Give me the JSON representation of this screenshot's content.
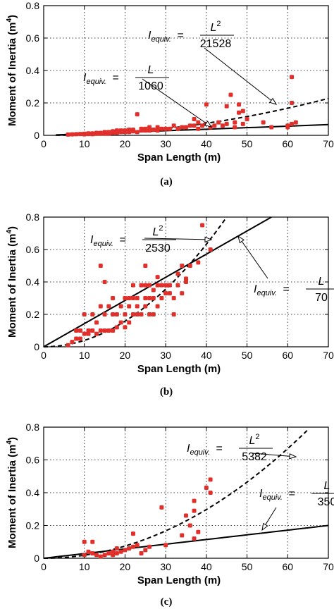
{
  "chart_data": [
    {
      "type": "scatter",
      "panel_label": "(a)",
      "xlabel": "Span Length (m)",
      "ylabel_main": "Moment of Inertia (m",
      "ylabel_sup": "4",
      "ylabel_close": ")",
      "xlim": [
        0,
        70
      ],
      "ylim": [
        0,
        0.8
      ],
      "xticks": [
        "0",
        "10",
        "20",
        "30",
        "40",
        "50",
        "60",
        "70"
      ],
      "yticks": [
        "0",
        "0.2",
        "0.4",
        "0.6",
        "0.8"
      ],
      "grid": true,
      "curves": [
        {
          "style": "dashed",
          "form": "quadratic",
          "divisor": 21528,
          "x": [
            3,
            70
          ]
        },
        {
          "style": "solid",
          "form": "linear",
          "divisor": 1060,
          "x": [
            3,
            70
          ]
        }
      ],
      "equations": [
        {
          "lhs": "I",
          "sub": "equiv.",
          "eq": "=",
          "num": "L",
          "num_sup": "2",
          "den": "21528"
        },
        {
          "lhs": "I",
          "sub": "equiv.",
          "eq": "=",
          "num": "L",
          "num_sup": "",
          "den": "1060"
        }
      ],
      "points": [
        [
          6,
          0.005
        ],
        [
          7,
          0.006
        ],
        [
          8,
          0.007
        ],
        [
          9,
          0.008
        ],
        [
          10,
          0.006
        ],
        [
          10,
          0.01
        ],
        [
          11,
          0.008
        ],
        [
          11,
          0.012
        ],
        [
          12,
          0.007
        ],
        [
          12,
          0.012
        ],
        [
          13,
          0.01
        ],
        [
          13,
          0.015
        ],
        [
          14,
          0.01
        ],
        [
          14,
          0.015
        ],
        [
          15,
          0.01
        ],
        [
          15,
          0.02
        ],
        [
          16,
          0.01
        ],
        [
          16,
          0.02
        ],
        [
          17,
          0.015
        ],
        [
          17,
          0.025
        ],
        [
          18,
          0.015
        ],
        [
          18,
          0.03
        ],
        [
          19,
          0.02
        ],
        [
          19,
          0.03
        ],
        [
          20,
          0.02
        ],
        [
          20,
          0.03
        ],
        [
          21,
          0.02
        ],
        [
          21,
          0.035
        ],
        [
          22,
          0.025
        ],
        [
          22,
          0.035
        ],
        [
          23,
          0.02
        ],
        [
          23,
          0.13
        ],
        [
          24,
          0.03
        ],
        [
          24,
          0.04
        ],
        [
          25,
          0.03
        ],
        [
          25,
          0.04
        ],
        [
          26,
          0.03
        ],
        [
          26,
          0.05
        ],
        [
          27,
          0.035
        ],
        [
          28,
          0.03
        ],
        [
          28,
          0.05
        ],
        [
          29,
          0.04
        ],
        [
          30,
          0.04
        ],
        [
          31,
          0.04
        ],
        [
          32,
          0.06
        ],
        [
          33,
          0.04
        ],
        [
          34,
          0.05
        ],
        [
          35,
          0.05
        ],
        [
          36,
          0.06
        ],
        [
          37,
          0.06
        ],
        [
          37,
          0.1
        ],
        [
          38,
          0.04
        ],
        [
          38,
          0.08
        ],
        [
          39,
          0.06
        ],
        [
          40,
          0.07
        ],
        [
          40,
          0.19
        ],
        [
          41,
          0.05
        ],
        [
          42,
          0.06
        ],
        [
          43,
          0.08
        ],
        [
          44,
          0.06
        ],
        [
          45,
          0.07
        ],
        [
          45,
          0.18
        ],
        [
          46,
          0.25
        ],
        [
          47,
          0.05
        ],
        [
          47,
          0.08
        ],
        [
          48,
          0.14
        ],
        [
          48,
          0.19
        ],
        [
          49,
          0.07
        ],
        [
          49,
          0.15
        ],
        [
          50,
          0.1
        ],
        [
          54,
          0.08
        ],
        [
          56,
          0.05
        ],
        [
          60,
          0.05
        ],
        [
          60,
          0.06
        ],
        [
          61,
          0.07
        ],
        [
          61,
          0.2
        ],
        [
          61,
          0.36
        ],
        [
          62,
          0.08
        ]
      ]
    },
    {
      "type": "scatter",
      "panel_label": "(b)",
      "xlabel": "Span Length (m)",
      "ylabel_main": "Moment of Inertia (m",
      "ylabel_sup": "4",
      "ylabel_close": ")",
      "xlim": [
        0,
        70
      ],
      "ylim": [
        0,
        0.8
      ],
      "xticks": [
        "0",
        "10",
        "20",
        "30",
        "40",
        "50",
        "60",
        "70"
      ],
      "yticks": [
        "0",
        "0.2",
        "0.4",
        "0.6",
        "0.8"
      ],
      "grid": true,
      "curves": [
        {
          "style": "dashed",
          "form": "quadratic",
          "divisor": 2530,
          "x": [
            0,
            45
          ]
        },
        {
          "style": "solid",
          "form": "linear",
          "divisor": 70,
          "x": [
            0,
            56
          ]
        }
      ],
      "equations": [
        {
          "lhs": "I",
          "sub": "equiv.",
          "eq": "=",
          "num": "L",
          "num_sup": "2",
          "den": "2530"
        },
        {
          "lhs": "I",
          "sub": "equiv.",
          "eq": "=",
          "num": "L",
          "num_sup": "",
          "den": "70"
        }
      ],
      "points": [
        [
          6,
          0.01
        ],
        [
          7,
          0.03
        ],
        [
          8,
          0.05
        ],
        [
          8,
          0.1
        ],
        [
          9,
          0.05
        ],
        [
          9,
          0.1
        ],
        [
          10,
          0.08
        ],
        [
          10,
          0.2
        ],
        [
          11,
          0.08
        ],
        [
          11,
          0.1
        ],
        [
          12,
          0.1
        ],
        [
          12,
          0.2
        ],
        [
          13,
          0.08
        ],
        [
          13,
          0.15
        ],
        [
          14,
          0.1
        ],
        [
          14,
          0.25
        ],
        [
          14,
          0.5
        ],
        [
          15,
          0.1
        ],
        [
          15,
          0.2
        ],
        [
          15,
          0.4
        ],
        [
          16,
          0.1
        ],
        [
          16,
          0.25
        ],
        [
          17,
          0.1
        ],
        [
          17,
          0.2
        ],
        [
          17,
          0.3
        ],
        [
          18,
          0.12
        ],
        [
          18,
          0.2
        ],
        [
          19,
          0.15
        ],
        [
          19,
          0.25
        ],
        [
          20,
          0.12
        ],
        [
          20,
          0.2
        ],
        [
          20,
          0.3
        ],
        [
          21,
          0.15
        ],
        [
          21,
          0.25
        ],
        [
          21,
          0.3
        ],
        [
          22,
          0.2
        ],
        [
          22,
          0.3
        ],
        [
          22,
          0.38
        ],
        [
          23,
          0.2
        ],
        [
          23,
          0.25
        ],
        [
          23,
          0.3
        ],
        [
          24,
          0.2
        ],
        [
          24,
          0.38
        ],
        [
          25,
          0.25
        ],
        [
          25,
          0.3
        ],
        [
          25,
          0.38
        ],
        [
          25,
          0.5
        ],
        [
          26,
          0.2
        ],
        [
          26,
          0.3
        ],
        [
          26,
          0.38
        ],
        [
          27,
          0.2
        ],
        [
          27,
          0.3
        ],
        [
          27,
          0.35
        ],
        [
          28,
          0.25
        ],
        [
          28,
          0.38
        ],
        [
          28,
          0.43
        ],
        [
          29,
          0.3
        ],
        [
          29,
          0.38
        ],
        [
          30,
          0.33
        ],
        [
          30,
          0.38
        ],
        [
          31,
          0.33
        ],
        [
          31,
          0.38
        ],
        [
          32,
          0.2
        ],
        [
          32,
          0.3
        ],
        [
          33,
          0.38
        ],
        [
          33,
          0.45
        ],
        [
          34,
          0.33
        ],
        [
          34,
          0.5
        ],
        [
          35,
          0.4
        ],
        [
          35,
          0.42
        ],
        [
          36,
          0.5
        ],
        [
          38,
          0.52
        ],
        [
          39,
          0.75
        ],
        [
          41,
          0.6
        ]
      ]
    },
    {
      "type": "scatter",
      "panel_label": "(c)",
      "xlabel": "Span Length (m)",
      "ylabel_main": "Moment of Inertia (m",
      "ylabel_sup": "4",
      "ylabel_close": ")",
      "xlim": [
        0,
        70
      ],
      "ylim": [
        0,
        0.8
      ],
      "xticks": [
        "0",
        "10",
        "20",
        "30",
        "40",
        "50",
        "60",
        "70"
      ],
      "yticks": [
        "0",
        "0.2",
        "0.4",
        "0.6",
        "0.8"
      ],
      "grid": true,
      "curves": [
        {
          "style": "dashed",
          "form": "quadratic",
          "divisor": 5382,
          "x": [
            0,
            65
          ]
        },
        {
          "style": "solid",
          "form": "linear",
          "divisor": 350,
          "x": [
            0,
            70
          ]
        }
      ],
      "equations": [
        {
          "lhs": "I",
          "sub": "equiv.",
          "eq": "=",
          "num": "L",
          "num_sup": "2",
          "den": "5382"
        },
        {
          "lhs": "I",
          "sub": "equiv.",
          "eq": "=",
          "num": "L",
          "num_sup": "",
          "den": "350"
        }
      ],
      "points": [
        [
          10,
          0.02
        ],
        [
          10,
          0.1
        ],
        [
          11,
          0.04
        ],
        [
          12,
          0.03
        ],
        [
          12,
          0.1
        ],
        [
          13,
          0.02
        ],
        [
          14,
          0.01
        ],
        [
          15,
          0.02
        ],
        [
          16,
          0.03
        ],
        [
          17,
          0.02
        ],
        [
          17,
          0.04
        ],
        [
          18,
          0.03
        ],
        [
          18,
          0.06
        ],
        [
          19,
          0.04
        ],
        [
          20,
          0.05
        ],
        [
          21,
          0.06
        ],
        [
          22,
          0.07
        ],
        [
          22,
          0.15
        ],
        [
          23,
          0.08
        ],
        [
          24,
          0.03
        ],
        [
          25,
          0.05
        ],
        [
          26,
          0.07
        ],
        [
          29,
          0.31
        ],
        [
          30,
          0.08
        ],
        [
          34,
          0.14
        ],
        [
          35,
          0.26
        ],
        [
          36,
          0.2
        ],
        [
          37,
          0.12
        ],
        [
          37,
          0.29
        ],
        [
          37,
          0.35
        ],
        [
          38,
          0.16
        ],
        [
          40,
          0.43
        ],
        [
          41,
          0.4
        ],
        [
          41,
          0.48
        ]
      ]
    }
  ]
}
